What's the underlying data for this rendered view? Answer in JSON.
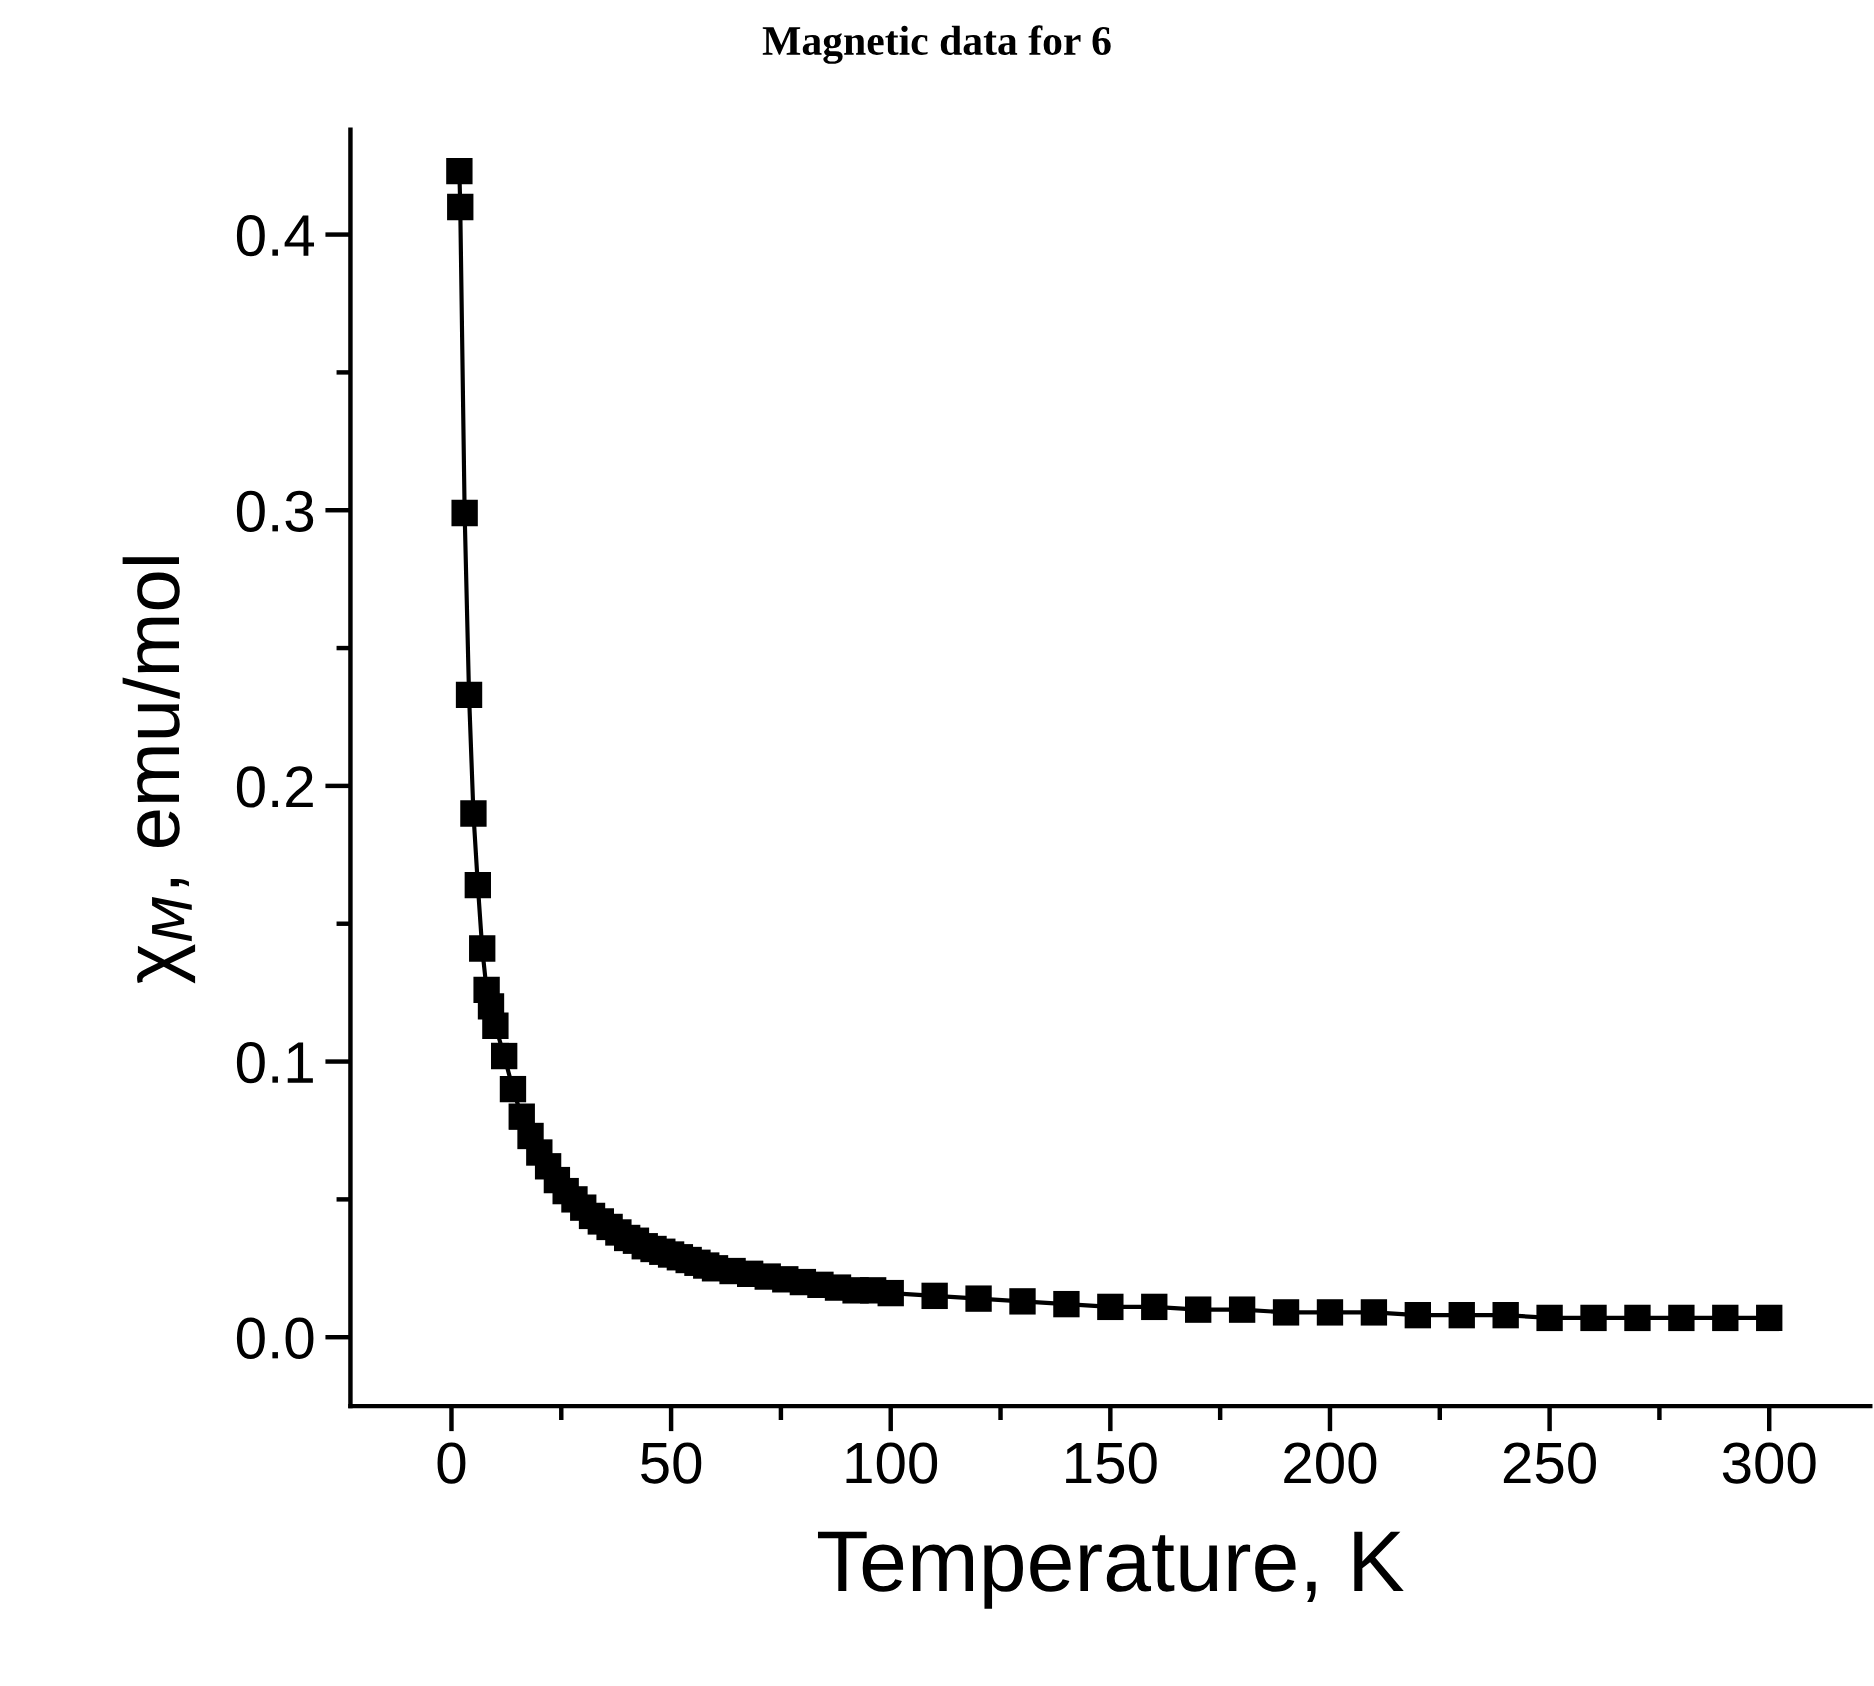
{
  "chart_data": {
    "type": "line",
    "title": "Magnetic data for 6",
    "xlabel": "Temperature, K",
    "ylabel": "χ$_{M}$, emu/mol",
    "marker": "square",
    "line_style": "solid",
    "grid": false,
    "legend": false,
    "xlim": [
      -23,
      323
    ],
    "ylim": [
      -0.025,
      0.438
    ],
    "xticks": [
      0,
      {
        "value": 25,
        "label": null
      },
      50,
      {
        "value": 75,
        "label": null
      },
      100,
      {
        "value": 125,
        "label": null
      },
      150,
      {
        "value": 175,
        "label": null
      },
      200,
      {
        "value": 225,
        "label": null
      },
      250,
      {
        "value": 275,
        "label": null
      },
      300
    ],
    "yticks": [
      {
        "value": 0.0,
        "label": "0.0"
      },
      {
        "value": 0.05,
        "label": null
      },
      0.1,
      {
        "value": 0.15,
        "label": null
      },
      0.2,
      {
        "value": 0.25,
        "label": null
      },
      0.3,
      {
        "value": 0.35,
        "label": null
      },
      0.4
    ],
    "series": [
      {
        "color": "#000000",
        "x": [
          1.8,
          2,
          3,
          4,
          5,
          6,
          7,
          8,
          9,
          10,
          12,
          14,
          16,
          18,
          20,
          22,
          24,
          26,
          28,
          30,
          32,
          34,
          36,
          38,
          40,
          42,
          44,
          46,
          48,
          50,
          52,
          54,
          56,
          58,
          60,
          64,
          68,
          72,
          76,
          80,
          84,
          88,
          92,
          96,
          100,
          110,
          120,
          130,
          140,
          150,
          160,
          170,
          180,
          190,
          200,
          210,
          220,
          230,
          240,
          250,
          260,
          270,
          280,
          290,
          300
        ],
        "values": [
          0.423,
          0.41,
          0.299,
          0.233,
          0.19,
          0.164,
          0.141,
          0.126,
          0.12,
          0.113,
          0.102,
          0.09,
          0.08,
          0.073,
          0.067,
          0.062,
          0.057,
          0.053,
          0.05,
          0.047,
          0.044,
          0.042,
          0.04,
          0.038,
          0.036,
          0.035,
          0.033,
          0.032,
          0.031,
          0.03,
          0.029,
          0.028,
          0.027,
          0.026,
          0.025,
          0.024,
          0.023,
          0.022,
          0.021,
          0.02,
          0.019,
          0.018,
          0.017,
          0.017,
          0.016,
          0.015,
          0.014,
          0.013,
          0.012,
          0.011,
          0.011,
          0.01,
          0.01,
          0.009,
          0.009,
          0.009,
          0.008,
          0.008,
          0.008,
          0.007,
          0.007,
          0.007,
          0.007,
          0.007,
          0.007
        ]
      }
    ]
  }
}
